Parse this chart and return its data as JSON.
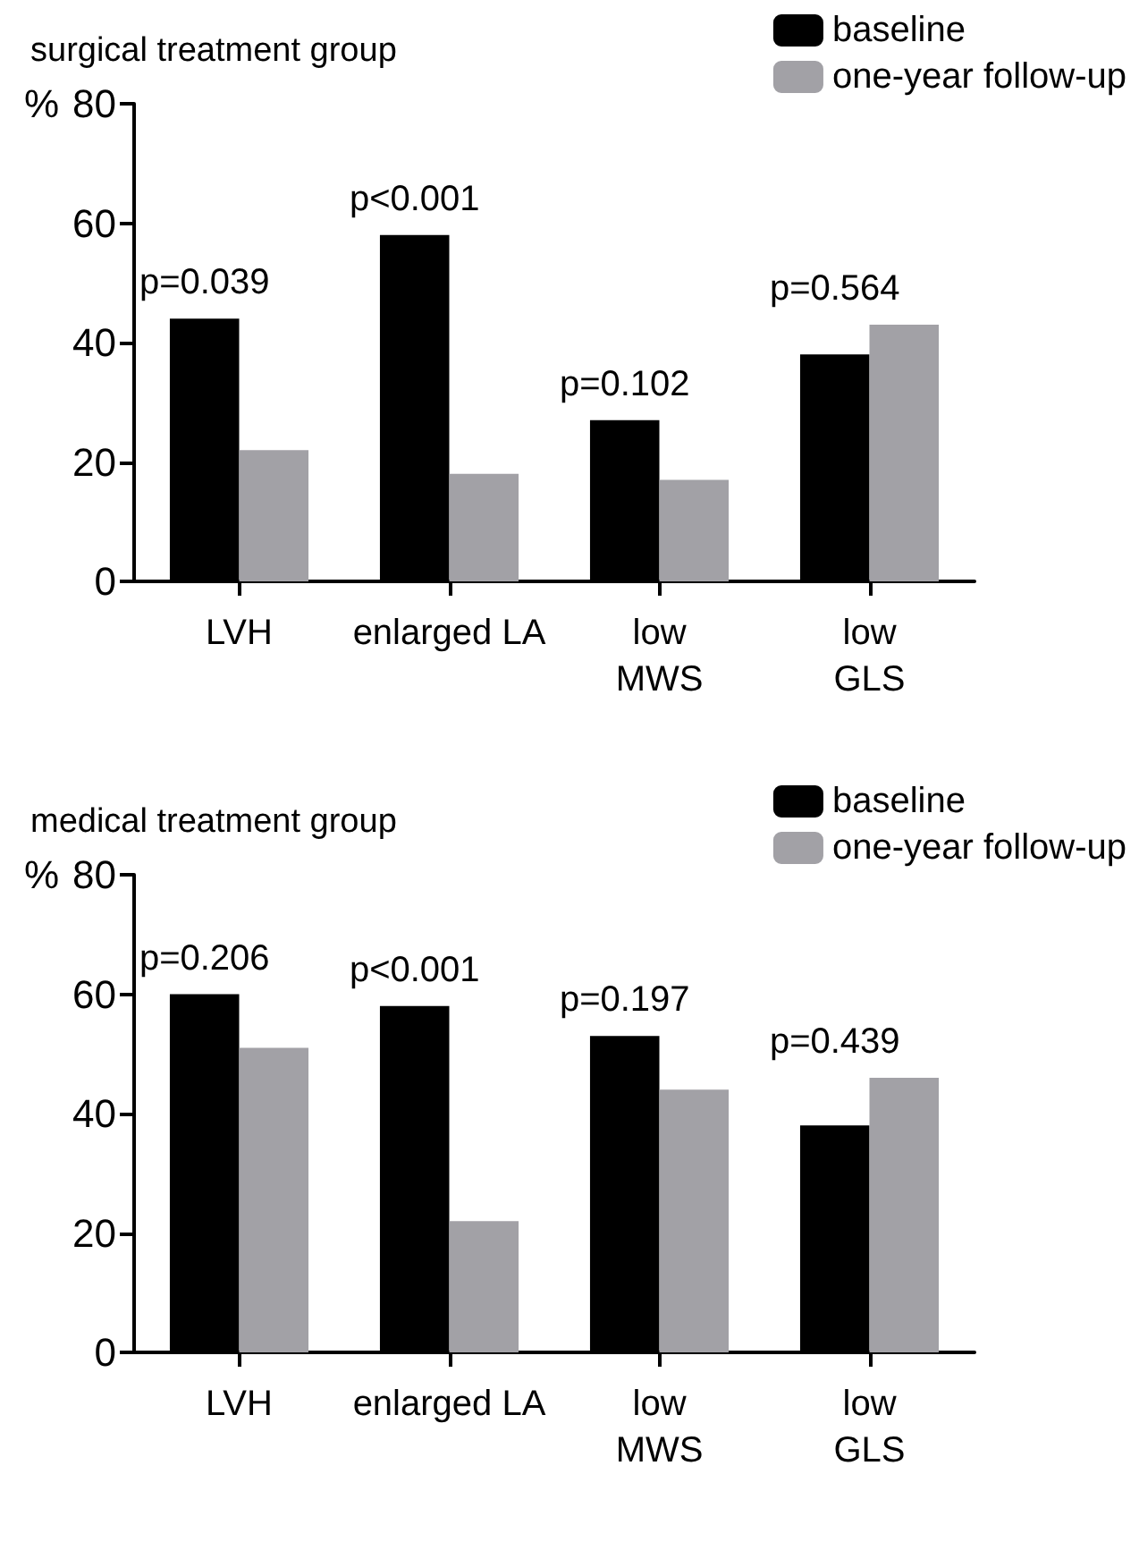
{
  "chart_data": [
    {
      "type": "bar",
      "title": "surgical treatment group",
      "ylabel": "%",
      "categories": [
        "LVH",
        "enlarged LA",
        "low\nMWS",
        "low\nGLS"
      ],
      "series": [
        {
          "name": "baseline",
          "color": "#000000",
          "values": [
            44,
            58,
            27,
            38
          ]
        },
        {
          "name": "one-year follow-up",
          "color": "#a2a1a6",
          "values": [
            22,
            18,
            17,
            43
          ]
        }
      ],
      "ylim": [
        0,
        80
      ],
      "yticks": [
        0,
        20,
        40,
        60,
        80
      ],
      "grid": false,
      "legend": "top right",
      "annotations": [
        {
          "text": "p=0.039",
          "x": "LVH",
          "y": 44
        },
        {
          "text": "p<0.001",
          "x": "enlarged LA",
          "y": 58
        },
        {
          "text": "p=0.102",
          "x": "low\nMWS",
          "y": 27
        },
        {
          "text": "p=0.564",
          "x": "low\nGLS",
          "y": 43
        }
      ]
    },
    {
      "type": "bar",
      "title": "medical treatment group",
      "ylabel": "%",
      "categories": [
        "LVH",
        "enlarged LA",
        "low\nMWS",
        "low\nGLS"
      ],
      "series": [
        {
          "name": "baseline",
          "color": "#000000",
          "values": [
            60,
            58,
            53,
            38
          ]
        },
        {
          "name": "one-year follow-up",
          "color": "#a2a1a6",
          "values": [
            51,
            22,
            44,
            46
          ]
        }
      ],
      "ylim": [
        0,
        80
      ],
      "yticks": [
        0,
        20,
        40,
        60,
        80
      ],
      "grid": false,
      "legend": "top right",
      "annotations": [
        {
          "text": "p=0.206",
          "x": "LVH",
          "y": 60
        },
        {
          "text": "p<0.001",
          "x": "enlarged LA",
          "y": 58
        },
        {
          "text": "p=0.197",
          "x": "low\nMWS",
          "y": 53
        },
        {
          "text": "p=0.439",
          "x": "low\nGLS",
          "y": 46
        }
      ]
    }
  ]
}
